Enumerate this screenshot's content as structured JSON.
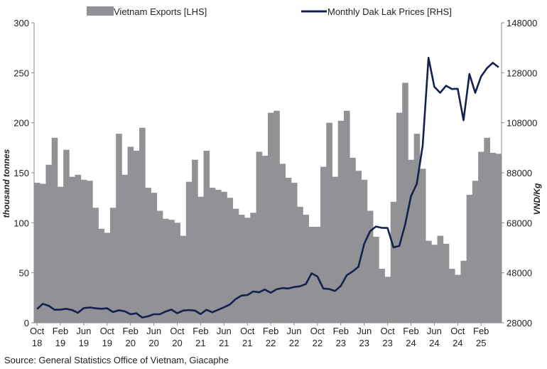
{
  "chart_data": {
    "type": "bar+line",
    "series": [
      {
        "name": "Vietnam Exports [LHS]",
        "type": "bar",
        "axis": "left",
        "color": "#929195",
        "values": [
          140,
          139,
          158,
          185,
          136,
          173,
          146,
          148,
          143,
          142,
          115,
          94,
          90,
          115,
          189,
          148,
          176,
          172,
          195,
          135,
          130,
          112,
          104,
          103,
          100,
          87,
          141,
          163,
          126,
          172,
          135,
          133,
          131,
          125,
          114,
          108,
          105,
          110,
          171,
          167,
          210,
          212,
          159,
          145,
          140,
          116,
          108,
          96,
          96,
          156,
          200,
          146,
          202,
          212,
          165,
          152,
          143,
          112,
          86,
          54,
          46,
          121,
          210,
          240,
          163,
          189,
          154,
          82,
          78,
          87,
          79,
          54,
          48,
          62,
          128,
          142,
          171,
          185,
          170,
          169
        ]
      },
      {
        "name": "Monthly Dak Lak Prices [RHS]",
        "type": "line",
        "axis": "right",
        "color": "#13214f",
        "values": [
          33500,
          35600,
          34800,
          33200,
          33300,
          33600,
          33100,
          32000,
          33900,
          34100,
          33800,
          33600,
          33800,
          32300,
          33000,
          32600,
          31400,
          31800,
          30100,
          30600,
          31400,
          31400,
          32500,
          33300,
          31800,
          32900,
          33100,
          32900,
          31500,
          33200,
          32200,
          33200,
          34200,
          35300,
          37500,
          38900,
          39100,
          40500,
          40200,
          41300,
          40000,
          41400,
          41900,
          41700,
          42300,
          42600,
          43500,
          47800,
          46500,
          41700,
          41500,
          40700,
          42800,
          47000,
          48500,
          50400,
          59600,
          64600,
          66500,
          66000,
          65900,
          58200,
          58700,
          67300,
          78600,
          83600,
          98900,
          134000,
          122400,
          120000,
          122800,
          121500,
          121600,
          109000,
          127500,
          120000,
          126500,
          129800,
          132000,
          130200
        ]
      }
    ],
    "x_tick_labels": [
      [
        "Oct",
        "18"
      ],
      [
        "Feb",
        "19"
      ],
      [
        "Jun",
        "19"
      ],
      [
        "Oct",
        "19"
      ],
      [
        "Feb",
        "20"
      ],
      [
        "Jun",
        "20"
      ],
      [
        "Oct",
        "20"
      ],
      [
        "Feb",
        "21"
      ],
      [
        "Jun",
        "21"
      ],
      [
        "Oct",
        "21"
      ],
      [
        "Feb",
        "22"
      ],
      [
        "Jun",
        "22"
      ],
      [
        "Oct",
        "22"
      ],
      [
        "Feb",
        "23"
      ],
      [
        "Jun",
        "23"
      ],
      [
        "Oct",
        "23"
      ],
      [
        "Feb",
        "24"
      ],
      [
        "Jun",
        "24"
      ],
      [
        "Oct",
        "24"
      ],
      [
        "Feb",
        "25"
      ]
    ],
    "x_tick_every": 4,
    "ylabel": "thousand tonnes",
    "y2label": "VND/Kg",
    "ylim": [
      0,
      300
    ],
    "y2lim": [
      28000,
      148000
    ],
    "y_ticks": [
      "0",
      "50",
      "100",
      "150",
      "200",
      "250",
      "300"
    ],
    "y2_ticks": [
      "28000",
      "48000",
      "68000",
      "88000",
      "108000",
      "128000",
      "148000"
    ],
    "grid": false,
    "legend_position": "top"
  },
  "source": "Source: General Statistics Office of Vietnam, Giacaphe"
}
